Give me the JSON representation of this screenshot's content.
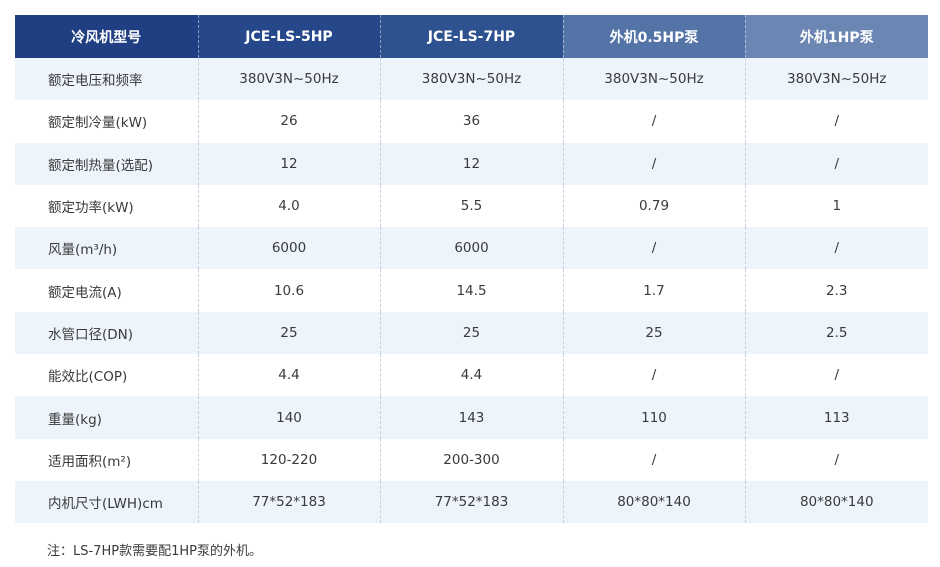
{
  "table": {
    "headers": [
      "冷风机型号",
      "JCE-LS-5HP",
      "JCE-LS-7HP",
      "外机0.5HP泵",
      "外机1HP泵"
    ],
    "rows": [
      [
        "额定电压和频率",
        "380V3N~50Hz",
        "380V3N~50Hz",
        "380V3N~50Hz",
        "380V3N~50Hz"
      ],
      [
        "额定制冷量(kW)",
        "26",
        "36",
        "/",
        "/"
      ],
      [
        "额定制热量(选配)",
        "12",
        "12",
        "/",
        "/"
      ],
      [
        "额定功率(kW)",
        "4.0",
        "5.5",
        "0.79",
        "1"
      ],
      [
        "风量(m³/h)",
        "6000",
        "6000",
        "/",
        "/"
      ],
      [
        "额定电流(A)",
        "10.6",
        "14.5",
        "1.7",
        "2.3"
      ],
      [
        "水管口径(DN)",
        "25",
        "25",
        "25",
        "2.5"
      ],
      [
        "能效比(COP)",
        "4.4",
        "4.4",
        "/",
        "/"
      ],
      [
        "重量(kg)",
        "140",
        "143",
        "110",
        "113"
      ],
      [
        "适用面积(m²)",
        "120-220",
        "200-300",
        "/",
        "/"
      ],
      [
        "内机尺寸(LWH)cm",
        "77*52*183",
        "77*52*183",
        "80*80*140",
        "80*80*140"
      ]
    ]
  },
  "note": "注：LS-7HP款需要配1HP泵的外机。",
  "colors": {
    "header_dark": "#1f3f82",
    "header_light": "#6b86b3",
    "row_stripe": "#edf4fc"
  }
}
